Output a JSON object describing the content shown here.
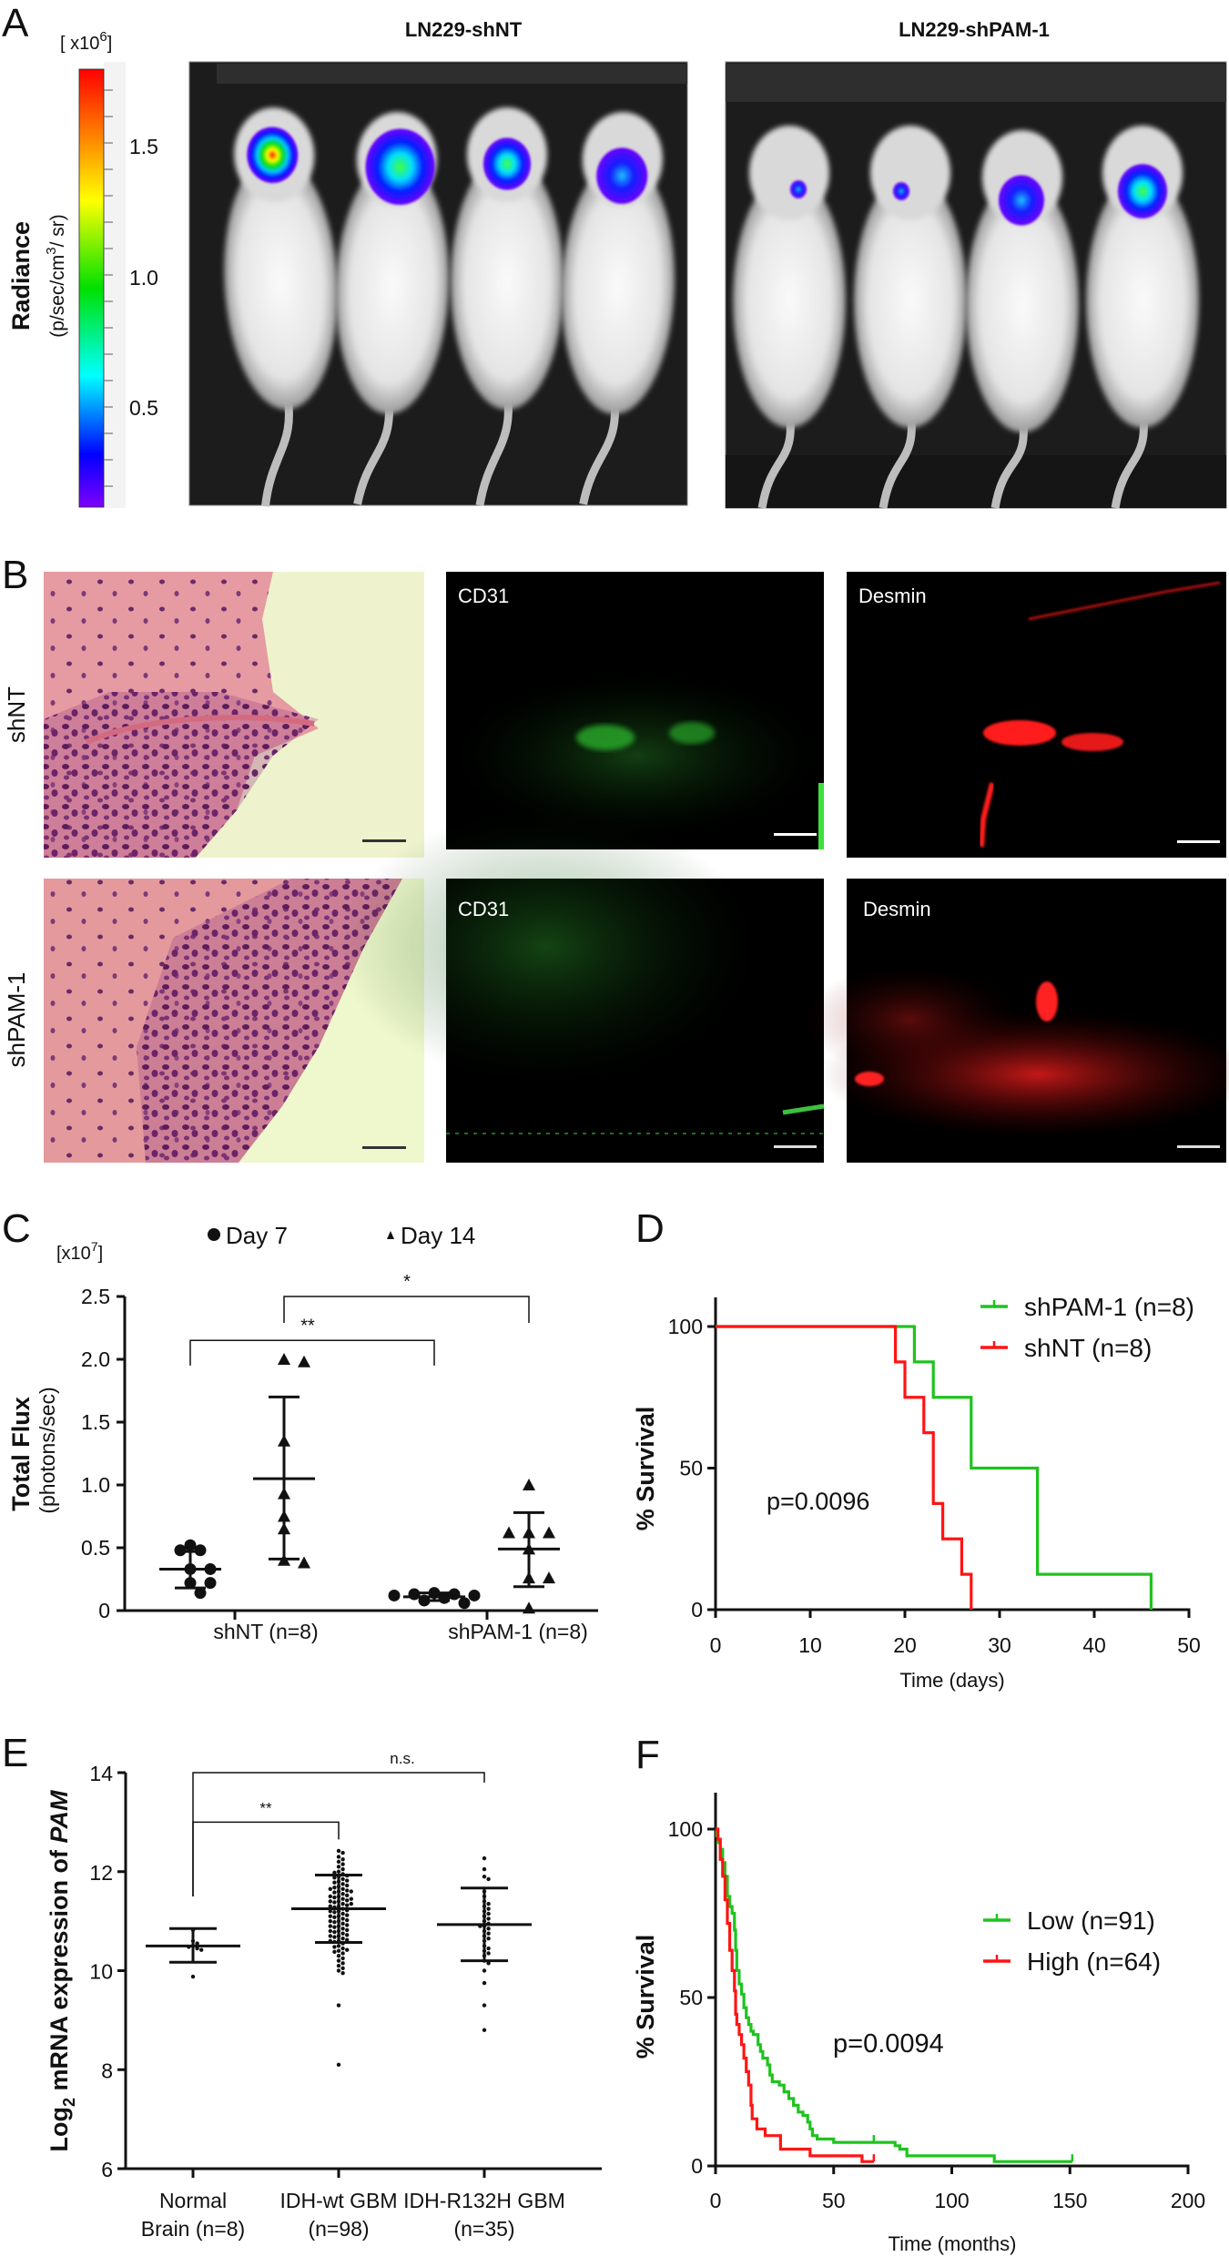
{
  "panel_a": {
    "label": "A",
    "titles": [
      "LN229-shNT",
      "LN229-shPAM-1"
    ],
    "colorbar": {
      "multiplier_open": "[ x10",
      "multiplier_exp": "6",
      "multiplier_close": "]",
      "ticks": [
        "1.5",
        "1.0",
        "0.5"
      ],
      "title": "Radiance",
      "unit_start": "(p/sec/cm",
      "unit_exp": "3",
      "unit_end": "/ sr)",
      "colors": [
        "#ff0000",
        "#ff8000",
        "#ffff00",
        "#00e000",
        "#00ffff",
        "#0000ff",
        "#8000ff"
      ]
    }
  },
  "panel_b": {
    "label": "B",
    "rows": [
      "shNT",
      "shPAM-1"
    ],
    "stains": [
      "CD31",
      "Desmin"
    ],
    "colors": {
      "cd31": "#2fbf2f",
      "desmin": "#ff1a1a"
    }
  },
  "chart_data": [
    {
      "panel": "C",
      "type": "scatter",
      "legend": [
        {
          "marker": "circle",
          "label": "Day 7"
        },
        {
          "marker": "triangle",
          "label": "Day 14"
        }
      ],
      "y_multiplier_open": "[x10",
      "y_multiplier_exp": "7",
      "y_multiplier_close": "]",
      "ylabel": "Total Flux",
      "ylabel_sub": "(photons/sec)",
      "ylim": [
        0,
        2.5
      ],
      "yticks": [
        "0",
        "0.5",
        "1.0",
        "1.5",
        "2.0",
        "2.5"
      ],
      "categories": [
        "shNT (n=8)",
        "shPAM-1 (n=8)"
      ],
      "series": [
        {
          "name": "Day 7",
          "marker": "circle",
          "groups": [
            {
              "values": [
                0.52,
                0.48,
                0.48,
                0.33,
                0.33,
                0.22,
                0.22,
                0.14
              ],
              "mean": 0.33,
              "sd": [
                0.18,
                0.47
              ]
            },
            {
              "values": [
                0.14,
                0.13,
                0.13,
                0.12,
                0.12,
                0.1,
                0.08,
                0.06
              ],
              "mean": 0.11,
              "sd": [
                0.08,
                0.14
              ]
            }
          ]
        },
        {
          "name": "Day 14",
          "marker": "triangle",
          "groups": [
            {
              "values": [
                1.98,
                2.0,
                1.35,
                0.93,
                0.75,
                0.65,
                0.4,
                0.38
              ],
              "mean": 1.05,
              "sd": [
                0.41,
                1.7
              ]
            },
            {
              "values": [
                1.0,
                0.62,
                0.62,
                0.62,
                0.49,
                0.26,
                0.26,
                0.02
              ],
              "mean": 0.49,
              "sd": [
                0.19,
                0.78
              ]
            }
          ]
        }
      ],
      "significance": [
        {
          "from": "shNT Day 7",
          "to": "shPAM-1 Day 7",
          "label": "**",
          "y": 2.15
        },
        {
          "from": "shNT Day 14",
          "to": "shPAM-1 Day 14",
          "label": "*",
          "y": 2.5
        }
      ]
    },
    {
      "panel": "D",
      "type": "line",
      "subtype": "kaplan-meier",
      "xlabel": "Time (days)",
      "ylabel": "% Survival",
      "xlim": [
        0,
        50
      ],
      "ylim": [
        0,
        100
      ],
      "xticks": [
        "0",
        "10",
        "20",
        "30",
        "40",
        "50"
      ],
      "yticks": [
        "0",
        "50",
        "100"
      ],
      "annotation": "p=0.0096",
      "legend_position": "top-right",
      "series": [
        {
          "name": "shPAM-1 (n=8)",
          "color": "#1ec31e",
          "steps": [
            [
              0,
              100
            ],
            [
              21,
              87.5
            ],
            [
              23,
              75
            ],
            [
              27,
              50
            ],
            [
              34,
              12.5
            ],
            [
              46,
              0
            ]
          ],
          "end": 46
        },
        {
          "name": "shNT (n=8)",
          "color": "#ff1414",
          "steps": [
            [
              0,
              100
            ],
            [
              19,
              87.5
            ],
            [
              20,
              75
            ],
            [
              22,
              62.5
            ],
            [
              23,
              37.5
            ],
            [
              24,
              25
            ],
            [
              26,
              12.5
            ],
            [
              27,
              0
            ]
          ],
          "end": 27
        }
      ]
    },
    {
      "panel": "E",
      "type": "scatter",
      "ylabel_prefix": "Log",
      "ylabel_sub": "2",
      "ylabel_mid": " mRNA expression of ",
      "ylabel_gene": "PAM",
      "ylim": [
        6,
        14
      ],
      "yticks": [
        "6",
        "8",
        "10",
        "12",
        "14"
      ],
      "categories": [
        [
          "Normal",
          "Brain (n=8)"
        ],
        [
          "IDH-wt GBM",
          "(n=98)"
        ],
        [
          "IDH-R132H GBM",
          "(n=35)"
        ]
      ],
      "groups": [
        {
          "values": [
            10.82,
            10.55,
            10.5,
            10.48,
            10.45,
            10.42,
            10.6,
            9.88
          ],
          "mean": 10.5,
          "sd": [
            10.17,
            10.85
          ]
        },
        {
          "values": [
            12.42,
            12.38,
            12.3,
            12.25,
            12.2,
            12.1,
            12.05,
            12.0,
            11.98,
            11.95,
            11.92,
            11.9,
            11.88,
            11.85,
            11.82,
            11.8,
            11.78,
            11.75,
            11.72,
            11.7,
            11.68,
            11.65,
            11.62,
            11.6,
            11.6,
            11.58,
            11.55,
            11.52,
            11.5,
            11.5,
            11.48,
            11.45,
            11.42,
            11.4,
            11.4,
            11.38,
            11.35,
            11.32,
            11.3,
            11.3,
            11.28,
            11.25,
            11.22,
            11.2,
            11.2,
            11.18,
            11.15,
            11.12,
            11.1,
            11.1,
            11.08,
            11.05,
            11.02,
            11.0,
            11.0,
            10.98,
            10.95,
            10.92,
            10.9,
            10.9,
            10.88,
            10.85,
            10.82,
            10.8,
            10.8,
            10.78,
            10.75,
            10.72,
            10.7,
            10.7,
            10.68,
            10.65,
            10.62,
            10.6,
            10.6,
            10.58,
            10.55,
            10.5,
            10.48,
            10.45,
            10.42,
            10.4,
            10.38,
            10.35,
            10.3,
            10.25,
            10.2,
            10.15,
            10.1,
            10.05,
            10.0,
            9.95,
            12.15,
            11.65,
            11.45,
            11.35,
            9.3,
            8.1
          ],
          "mean": 11.25,
          "sd": [
            10.57,
            11.93
          ]
        },
        {
          "values": [
            12.27,
            12.05,
            11.9,
            11.85,
            11.6,
            11.4,
            11.35,
            11.3,
            11.25,
            11.2,
            11.15,
            11.1,
            11.0,
            10.95,
            10.9,
            10.9,
            10.85,
            10.8,
            10.75,
            10.7,
            10.65,
            10.6,
            10.5,
            10.45,
            10.4,
            10.35,
            10.3,
            10.2,
            10.15,
            10.0,
            9.75,
            9.3,
            8.8,
            11.5,
            11.05
          ],
          "mean": 10.93,
          "sd": [
            10.2,
            11.67
          ]
        }
      ],
      "significance": [
        {
          "from": "Normal Brain (n=8)",
          "to": "IDH-wt GBM (n=98)",
          "label": "**",
          "y": 13.0
        },
        {
          "from": "Normal Brain (n=8)",
          "to": "IDH-R132H GBM (n=35)",
          "label": "n.s.",
          "y": 14.0
        }
      ]
    },
    {
      "panel": "F",
      "type": "line",
      "subtype": "kaplan-meier",
      "xlabel": "Time (months)",
      "ylabel": "% Survival",
      "xlim": [
        0,
        200
      ],
      "ylim": [
        0,
        100
      ],
      "xticks": [
        "0",
        "50",
        "100",
        "150",
        "200"
      ],
      "yticks": [
        "0",
        "50",
        "100"
      ],
      "annotation": "p=0.0094",
      "legend_position": "right",
      "series": [
        {
          "name": "Low (n=91)",
          "color": "#1ec31e",
          "steps": [
            [
              0,
              100
            ],
            [
              0.5,
              98
            ],
            [
              1,
              96
            ],
            [
              2,
              94
            ],
            [
              3,
              90
            ],
            [
              4,
              86
            ],
            [
              5,
              80
            ],
            [
              6,
              77
            ],
            [
              7,
              75
            ],
            [
              8,
              70
            ],
            [
              8.5,
              64
            ],
            [
              9,
              58
            ],
            [
              10,
              54
            ],
            [
              11,
              51
            ],
            [
              12,
              47
            ],
            [
              13,
              44
            ],
            [
              14,
              42
            ],
            [
              15,
              40
            ],
            [
              16,
              39
            ],
            [
              18,
              36
            ],
            [
              19,
              34
            ],
            [
              20,
              32
            ],
            [
              22,
              30
            ],
            [
              23,
              27
            ],
            [
              24,
              25
            ],
            [
              27,
              24
            ],
            [
              29,
              22
            ],
            [
              31,
              20
            ],
            [
              33,
              18
            ],
            [
              35,
              16
            ],
            [
              37,
              15
            ],
            [
              39,
              13
            ],
            [
              40,
              11
            ],
            [
              41,
              9
            ],
            [
              43,
              8
            ],
            [
              50,
              7
            ],
            [
              76,
              6
            ],
            [
              78,
              5
            ],
            [
              81,
              3
            ],
            [
              118,
              1.3
            ]
          ],
          "censored": [
            67
          ],
          "end": 151
        },
        {
          "name": "High (n=64)",
          "color": "#ff1414",
          "steps": [
            [
              0,
              100
            ],
            [
              1,
              97
            ],
            [
              2,
              91
            ],
            [
              3,
              86
            ],
            [
              4,
              79
            ],
            [
              5,
              72
            ],
            [
              6,
              64
            ],
            [
              7,
              58
            ],
            [
              8,
              52
            ],
            [
              8.5,
              45
            ],
            [
              9,
              42
            ],
            [
              10,
              39
            ],
            [
              11,
              36
            ],
            [
              12,
              32
            ],
            [
              13,
              28
            ],
            [
              14,
              24
            ],
            [
              15,
              18
            ],
            [
              15.5,
              14
            ],
            [
              17.5,
              11
            ],
            [
              21,
              9
            ],
            [
              27.5,
              5
            ],
            [
              40,
              3
            ],
            [
              62,
              1.3
            ]
          ],
          "censored": [],
          "end": 67
        }
      ]
    }
  ]
}
